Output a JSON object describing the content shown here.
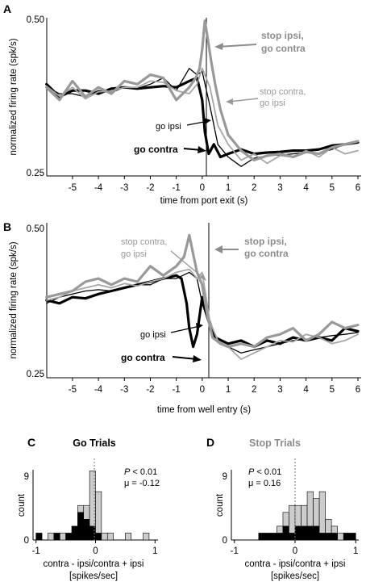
{
  "chart_data": [
    {
      "panel": "A",
      "type": "line",
      "title": "",
      "xlabel": "time from port exit (s)",
      "ylabel": "normalized firing rate (spk/s)",
      "xlim": [
        -6,
        6
      ],
      "ylim": [
        0.25,
        0.5
      ],
      "xticks": [
        -5,
        -4,
        -3,
        -2,
        -1,
        0,
        1,
        2,
        3,
        4,
        5,
        6
      ],
      "yticks": [
        0.25,
        0.5
      ],
      "event_line_x": 0,
      "annotations": [
        "stop ipsi,\ngo contra",
        "stop contra,\ngo ipsi",
        "go ipsi",
        "go contra"
      ],
      "series": [
        {
          "name": "go contra",
          "color": "#000000",
          "width": 3.2,
          "x": [
            -6.0,
            -5.5,
            -5.0,
            -4.5,
            -4.0,
            -3.5,
            -3.0,
            -2.5,
            -2.0,
            -1.5,
            -1.0,
            -0.5,
            -0.2,
            0.0,
            0.1,
            0.25,
            0.45,
            0.7,
            1.0,
            1.5,
            2.0,
            2.5,
            3.0,
            3.5,
            4.0,
            4.5,
            5.0,
            5.5,
            6.0
          ],
          "y": [
            0.395,
            0.375,
            0.385,
            0.385,
            0.38,
            0.388,
            0.39,
            0.388,
            0.39,
            0.392,
            0.39,
            0.4,
            0.405,
            0.37,
            0.32,
            0.285,
            0.3,
            0.28,
            0.285,
            0.292,
            0.285,
            0.287,
            0.288,
            0.29,
            0.29,
            0.292,
            0.298,
            0.3,
            0.303
          ]
        },
        {
          "name": "go ipsi",
          "color": "#000000",
          "width": 1.3,
          "x": [
            -6.0,
            -5.5,
            -5.0,
            -4.5,
            -4.0,
            -3.5,
            -3.0,
            -2.5,
            -2.0,
            -1.5,
            -1.0,
            -0.5,
            -0.2,
            0.0,
            0.3,
            0.6,
            1.0,
            1.5,
            2.0,
            2.5,
            3.0,
            3.5,
            4.0,
            4.5,
            5.0,
            5.5,
            6.0
          ],
          "y": [
            0.39,
            0.38,
            0.38,
            0.375,
            0.385,
            0.382,
            0.39,
            0.388,
            0.395,
            0.405,
            0.385,
            0.42,
            0.41,
            0.415,
            0.36,
            0.3,
            0.28,
            0.265,
            0.278,
            0.282,
            0.283,
            0.285,
            0.287,
            0.286,
            0.292,
            0.3,
            0.305
          ]
        },
        {
          "name": "stop contra, go ipsi",
          "color": "#a6a6a6",
          "width": 1.8,
          "x": [
            -6.0,
            -5.5,
            -5.0,
            -4.5,
            -4.0,
            -3.5,
            -3.0,
            -2.5,
            -2.0,
            -1.5,
            -1.0,
            -0.5,
            -0.2,
            0.0,
            0.3,
            0.6,
            1.0,
            1.5,
            2.0,
            2.5,
            3.0,
            3.5,
            4.0,
            4.5,
            5.0,
            5.5,
            6.0
          ],
          "y": [
            0.392,
            0.376,
            0.39,
            0.372,
            0.383,
            0.384,
            0.39,
            0.39,
            0.4,
            0.398,
            0.385,
            0.38,
            0.395,
            0.42,
            0.39,
            0.33,
            0.3,
            0.275,
            0.285,
            0.27,
            0.282,
            0.28,
            0.29,
            0.28,
            0.295,
            0.285,
            0.29
          ]
        },
        {
          "name": "stop ipsi, go contra",
          "color": "#999999",
          "width": 3.2,
          "x": [
            -6.0,
            -5.5,
            -5.0,
            -4.5,
            -4.0,
            -3.5,
            -3.0,
            -2.5,
            -2.0,
            -1.5,
            -1.0,
            -0.5,
            -0.25,
            -0.1,
            0.0,
            0.1,
            0.2,
            0.35,
            0.5,
            0.7,
            1.0,
            1.5,
            2.0,
            2.5,
            3.0,
            3.5,
            4.0,
            4.5,
            5.0,
            5.5,
            6.0
          ],
          "y": [
            0.39,
            0.37,
            0.4,
            0.375,
            0.39,
            0.38,
            0.4,
            0.395,
            0.41,
            0.405,
            0.37,
            0.39,
            0.405,
            0.42,
            0.45,
            0.495,
            0.47,
            0.43,
            0.395,
            0.355,
            0.315,
            0.29,
            0.275,
            0.282,
            0.285,
            0.28,
            0.288,
            0.285,
            0.295,
            0.3,
            0.305
          ]
        }
      ]
    },
    {
      "panel": "B",
      "type": "line",
      "title": "",
      "xlabel": "time from well entry (s)",
      "ylabel": "normalized firing rate (spk/s)",
      "xlim": [
        -6,
        6
      ],
      "ylim": [
        0.25,
        0.5
      ],
      "xticks": [
        -5,
        -4,
        -3,
        -2,
        -1,
        0,
        1,
        2,
        3,
        4,
        5,
        6
      ],
      "yticks": [
        0.25,
        0.5
      ],
      "event_line_x": 0,
      "annotations": [
        "stop contra,\ngo ipsi",
        "stop ipsi,\ngo contra",
        "go ipsi",
        "go contra"
      ],
      "series": [
        {
          "name": "go contra",
          "color": "#000000",
          "width": 3.2,
          "x": [
            -6.0,
            -5.5,
            -5.0,
            -4.5,
            -4.0,
            -3.5,
            -3.0,
            -2.5,
            -2.0,
            -1.5,
            -1.0,
            -0.8,
            -0.6,
            -0.5,
            -0.35,
            -0.2,
            0.0,
            0.2,
            0.5,
            1.0,
            1.5,
            2.0,
            2.5,
            3.0,
            3.5,
            4.0,
            4.5,
            5.0,
            5.5,
            6.0
          ],
          "y": [
            0.375,
            0.37,
            0.38,
            0.378,
            0.385,
            0.39,
            0.395,
            0.4,
            0.405,
            0.41,
            0.415,
            0.41,
            0.37,
            0.33,
            0.3,
            0.32,
            0.38,
            0.35,
            0.315,
            0.305,
            0.31,
            0.3,
            0.31,
            0.305,
            0.315,
            0.31,
            0.315,
            0.31,
            0.33,
            0.325
          ]
        },
        {
          "name": "go ipsi",
          "color": "#000000",
          "width": 1.3,
          "x": [
            -6.0,
            -5.5,
            -5.0,
            -4.5,
            -4.0,
            -3.5,
            -3.0,
            -2.5,
            -2.0,
            -1.5,
            -1.0,
            -0.5,
            -0.2,
            0.0,
            0.3,
            0.6,
            1.0,
            1.5,
            2.0,
            2.5,
            3.0,
            3.5,
            4.0,
            4.5,
            5.0,
            5.5,
            6.0
          ],
          "y": [
            0.37,
            0.38,
            0.385,
            0.39,
            0.392,
            0.39,
            0.395,
            0.4,
            0.4,
            0.41,
            0.41,
            0.42,
            0.41,
            0.37,
            0.33,
            0.31,
            0.3,
            0.29,
            0.295,
            0.3,
            0.305,
            0.31,
            0.312,
            0.315,
            0.318,
            0.32,
            0.323
          ]
        },
        {
          "name": "stop contra, go ipsi",
          "color": "#a6a6a6",
          "width": 1.8,
          "x": [
            -6.0,
            -5.5,
            -5.0,
            -4.5,
            -4.0,
            -3.5,
            -3.0,
            -2.5,
            -2.0,
            -1.5,
            -1.0,
            -0.5,
            -0.2,
            0.0,
            0.3,
            0.6,
            1.0,
            1.5,
            2.0,
            2.5,
            3.0,
            3.5,
            4.0,
            4.5,
            5.0,
            5.5,
            6.0
          ],
          "y": [
            0.375,
            0.38,
            0.39,
            0.395,
            0.4,
            0.395,
            0.402,
            0.398,
            0.405,
            0.41,
            0.42,
            0.425,
            0.41,
            0.42,
            0.34,
            0.31,
            0.3,
            0.28,
            0.29,
            0.3,
            0.31,
            0.308,
            0.32,
            0.315,
            0.305,
            0.31,
            0.32
          ]
        },
        {
          "name": "stop ipsi, go contra",
          "color": "#999999",
          "width": 3.2,
          "x": [
            -6.0,
            -5.5,
            -5.0,
            -4.5,
            -4.0,
            -3.5,
            -3.0,
            -2.5,
            -2.0,
            -1.5,
            -1.0,
            -0.7,
            -0.5,
            -0.35,
            -0.2,
            0.0,
            0.2,
            0.4,
            0.7,
            1.0,
            1.5,
            2.0,
            2.5,
            3.0,
            3.5,
            4.0,
            4.5,
            5.0,
            5.5,
            6.0
          ],
          "y": [
            0.38,
            0.385,
            0.39,
            0.405,
            0.41,
            0.4,
            0.41,
            0.405,
            0.43,
            0.415,
            0.43,
            0.445,
            0.48,
            0.45,
            0.42,
            0.4,
            0.35,
            0.315,
            0.305,
            0.3,
            0.305,
            0.3,
            0.315,
            0.32,
            0.33,
            0.31,
            0.32,
            0.34,
            0.33,
            0.335
          ]
        }
      ]
    },
    {
      "panel": "C",
      "type": "bar",
      "title": "Go Trials",
      "xlabel": "contra - ipsi/contra + ipsi",
      "xlabel2": "[spikes/sec]",
      "ylabel": "count",
      "xlim": [
        -1.05,
        1.05
      ],
      "ylim": [
        0,
        9
      ],
      "xticks": [
        -1,
        0,
        1
      ],
      "yticks": [
        0,
        9
      ],
      "stats": {
        "p": "< 0.01",
        "mu": "μ = -0.12"
      },
      "mean_line_x": -0.02,
      "bin_width": 0.1,
      "bins_left": [
        -1.0,
        -0.9,
        -0.8,
        -0.7,
        -0.6,
        -0.5,
        -0.4,
        -0.3,
        -0.2,
        -0.1,
        0.0,
        0.1,
        0.2,
        0.3,
        0.4,
        0.5,
        0.6,
        0.7,
        0.8,
        0.9
      ],
      "black_counts": [
        1,
        0,
        0,
        1,
        0,
        1,
        2,
        4,
        3,
        2,
        1,
        0,
        0,
        0,
        0,
        0,
        0,
        0,
        0,
        0
      ],
      "gray_counts": [
        0,
        0,
        1,
        0,
        1,
        0,
        0,
        1,
        2,
        8,
        6,
        1,
        1,
        0,
        0,
        1,
        0,
        0,
        1,
        0
      ]
    },
    {
      "panel": "D",
      "type": "bar",
      "title": "Stop Trials",
      "xlabel": "contra - ipsi/contra + ipsi",
      "xlabel2": "[spikes/sec]",
      "ylabel": "count",
      "xlim": [
        -1.05,
        1.05
      ],
      "ylim": [
        0,
        9
      ],
      "xticks": [
        -1,
        0,
        1
      ],
      "yticks": [
        0,
        9
      ],
      "stats": {
        "p": "< 0.01",
        "mu": "μ = 0.16"
      },
      "mean_line_x": 0.0,
      "bin_width": 0.1,
      "bins_left": [
        -1.0,
        -0.9,
        -0.8,
        -0.7,
        -0.6,
        -0.5,
        -0.4,
        -0.3,
        -0.2,
        -0.1,
        0.0,
        0.1,
        0.2,
        0.3,
        0.4,
        0.5,
        0.6,
        0.7,
        0.8,
        0.9
      ],
      "black_counts": [
        0,
        0,
        0,
        0,
        1,
        1,
        1,
        1,
        2,
        1,
        2,
        2,
        2,
        2,
        1,
        1,
        1,
        0,
        1,
        1
      ],
      "gray_counts": [
        0,
        0,
        0,
        0,
        0,
        0,
        0,
        1,
        2,
        4,
        3,
        3,
        5,
        4,
        6,
        2,
        1,
        1,
        0,
        0
      ]
    }
  ],
  "labels": {
    "A": "A",
    "B": "B",
    "C": "C",
    "D": "D",
    "y050": "0.50",
    "y025": "0.25",
    "a_stop_ipsi_1": "stop ipsi,",
    "a_stop_ipsi_2": "go contra",
    "a_stop_contra_1": "stop contra,",
    "a_stop_contra_2": "go ipsi",
    "a_go_ipsi": "go ipsi",
    "a_go_contra": "go contra",
    "p_label": "P"
  },
  "colors": {
    "black": "#000000",
    "gray_thick": "#999999",
    "gray_thin": "#a6a6a6",
    "bar_gray": "#cccccc"
  }
}
